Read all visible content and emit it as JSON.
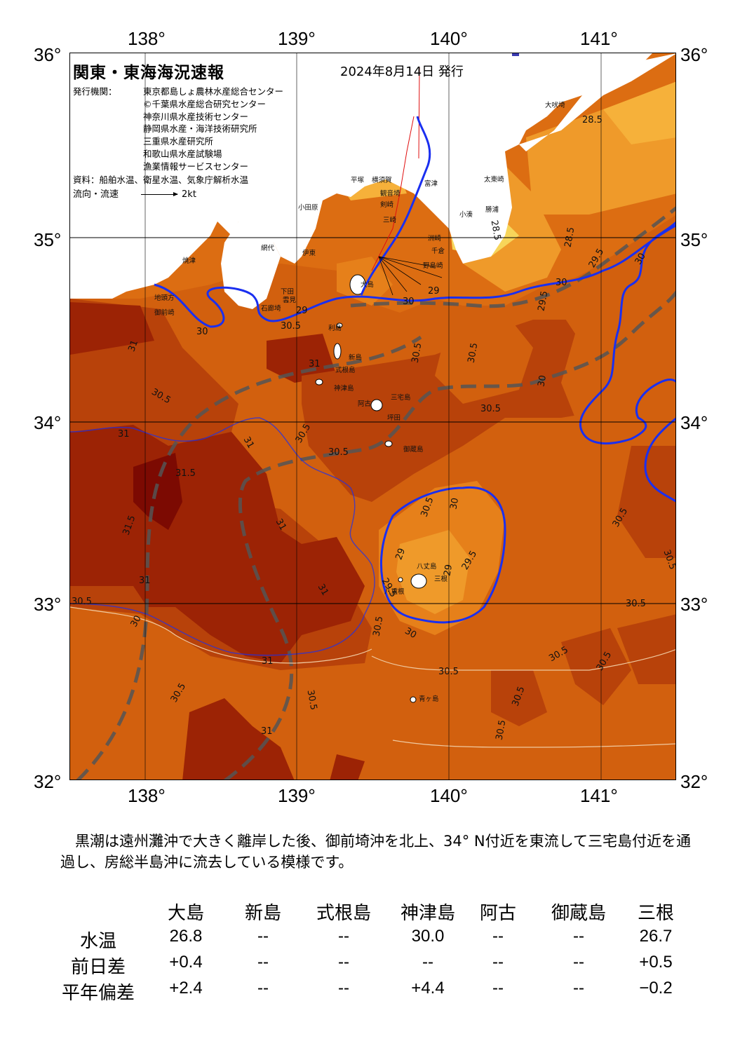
{
  "map": {
    "title": "関東・東海海況速報",
    "issue_date": "2024年8月14日 発行",
    "agency_label": "発行機関：",
    "agencies": [
      "東京都島しょ農林水産総合センター",
      "©千葉県水産総合研究センター",
      "神奈川県水産技術センター",
      "静岡県水産・海洋技術研究所",
      "三重県水産研究所",
      "和歌山県水産試験場",
      "漁業情報サービスセンター"
    ],
    "source": "資料：船舶水温、衛星水温、気象庁解析水温",
    "flow_legend_label": "流向・流速",
    "flow_legend_value": "2kt",
    "lon_ticks": [
      "138°",
      "139°",
      "140°",
      "141°"
    ],
    "lat_ticks": [
      "36°",
      "35°",
      "34°",
      "33°",
      "32°"
    ],
    "places": [
      {
        "name": "大吠埼"
      },
      {
        "name": "太東崎"
      },
      {
        "name": "勝浦"
      },
      {
        "name": "小湊"
      },
      {
        "name": "富津"
      },
      {
        "name": "洲崎"
      },
      {
        "name": "千倉"
      },
      {
        "name": "野島崎"
      },
      {
        "name": "観音埼"
      },
      {
        "name": "剣崎"
      },
      {
        "name": "三崎"
      },
      {
        "name": "横須賀"
      },
      {
        "name": "平塚"
      },
      {
        "name": "小田原"
      },
      {
        "name": "網代"
      },
      {
        "name": "伊東"
      },
      {
        "name": "下田"
      },
      {
        "name": "石廊埼"
      },
      {
        "name": "御前崎"
      },
      {
        "name": "焼津"
      },
      {
        "name": "地頭方"
      },
      {
        "name": "大島"
      },
      {
        "name": "利島"
      },
      {
        "name": "新島"
      },
      {
        "name": "式根島"
      },
      {
        "name": "神津島"
      },
      {
        "name": "三宅島"
      },
      {
        "name": "阿古"
      },
      {
        "name": "坪田"
      },
      {
        "name": "御蔵島"
      },
      {
        "name": "八丈島"
      },
      {
        "name": "三根"
      },
      {
        "name": "八重根"
      },
      {
        "name": "青ヶ島"
      },
      {
        "name": "雲見"
      }
    ],
    "isotherm_labels": [
      "28.5",
      "28.5",
      "28.5",
      "29",
      "29.5",
      "30",
      "30",
      "30",
      "29",
      "29.5",
      "30",
      "30.5",
      "30.5",
      "31",
      "31",
      "31",
      "30.5",
      "30.5",
      "30.5",
      "30.5",
      "31",
      "31.5",
      "31.5",
      "31",
      "31",
      "31",
      "30.5",
      "30.5",
      "30",
      "30.5",
      "29",
      "29.5",
      "29",
      "30",
      "29.5",
      "30",
      "30.5",
      "30.5",
      "30.5",
      "30.5",
      "30.5",
      "30.5",
      "31",
      "30.5",
      "30.5",
      "31",
      "30.5",
      "30.5",
      "30.5",
      "30"
    ],
    "colors": {
      "land": "#ffffff",
      "t28": "#f6b13a",
      "t285": "#ef9a2a",
      "t29": "#e6801a",
      "t295": "#dc6d12",
      "t30": "#d2600e",
      "t305": "#b8420a",
      "t31": "#9c2305",
      "t315": "#7c0a02",
      "kuroshio_axis": "#555555",
      "isoline_30": "#1a2ff0"
    }
  },
  "comment": "黒潮は遠州灘沖で大きく離岸した後、御前埼沖を北上、34° N付近を東流して三宅島付近を通過し、房総半島沖に流去している模様です。",
  "table": {
    "headers": [
      "大島",
      "新島",
      "式根島",
      "神津島",
      "阿古",
      "御蔵島",
      "三根"
    ],
    "rows": [
      {
        "label": "水温",
        "values": [
          "26.8",
          "--",
          "--",
          "30.0",
          "--",
          "--",
          "26.7"
        ]
      },
      {
        "label": "前日差",
        "values": [
          "+0.4",
          "--",
          "--",
          "--",
          "--",
          "--",
          "+0.5"
        ]
      },
      {
        "label": "平年偏差",
        "values": [
          "+2.4",
          "--",
          "--",
          "+4.4",
          "--",
          "--",
          "−0.2"
        ]
      }
    ]
  }
}
